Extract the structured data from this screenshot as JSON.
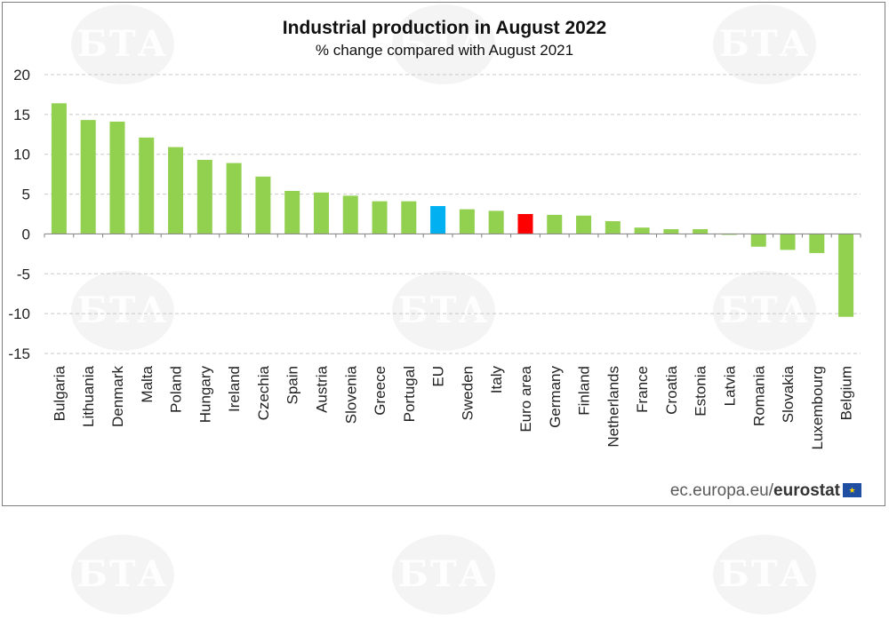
{
  "chart_data": {
    "type": "bar",
    "title": "Industrial production in August 2022",
    "subtitle": "% change compared with August 2021",
    "xlabel": "",
    "ylabel": "",
    "ylim": [
      -15,
      20
    ],
    "yticks": [
      20,
      15,
      10,
      5,
      0,
      -5,
      -10,
      -15
    ],
    "grid": true,
    "categories": [
      "Bulgaria",
      "Lithuania",
      "Denmark",
      "Malta",
      "Poland",
      "Hungary",
      "Ireland",
      "Czechia",
      "Spain",
      "Austria",
      "Slovenia",
      "Greece",
      "Portugal",
      "EU",
      "Sweden",
      "Italy",
      "Euro area",
      "Germany",
      "Finland",
      "Netherlands",
      "France",
      "Croatia",
      "Estonia",
      "Latvia",
      "Romania",
      "Slovakia",
      "Luxembourg",
      "Belgium"
    ],
    "values": [
      16.4,
      14.3,
      14.1,
      12.1,
      10.9,
      9.3,
      8.9,
      7.2,
      5.4,
      5.2,
      4.8,
      4.1,
      4.1,
      3.5,
      3.1,
      2.9,
      2.5,
      2.4,
      2.3,
      1.6,
      0.8,
      0.6,
      0.6,
      -0.1,
      -1.6,
      -2.0,
      -2.4,
      -10.4
    ],
    "colors": {
      "default": "#92d050",
      "EU": "#00b0f0",
      "Euro area": "#ff0000"
    }
  },
  "source": {
    "prefix": "ec.europa.eu/",
    "brand": "eurostat"
  },
  "watermark": "БТА",
  "icons": {
    "flag": "eu-flag-icon"
  }
}
